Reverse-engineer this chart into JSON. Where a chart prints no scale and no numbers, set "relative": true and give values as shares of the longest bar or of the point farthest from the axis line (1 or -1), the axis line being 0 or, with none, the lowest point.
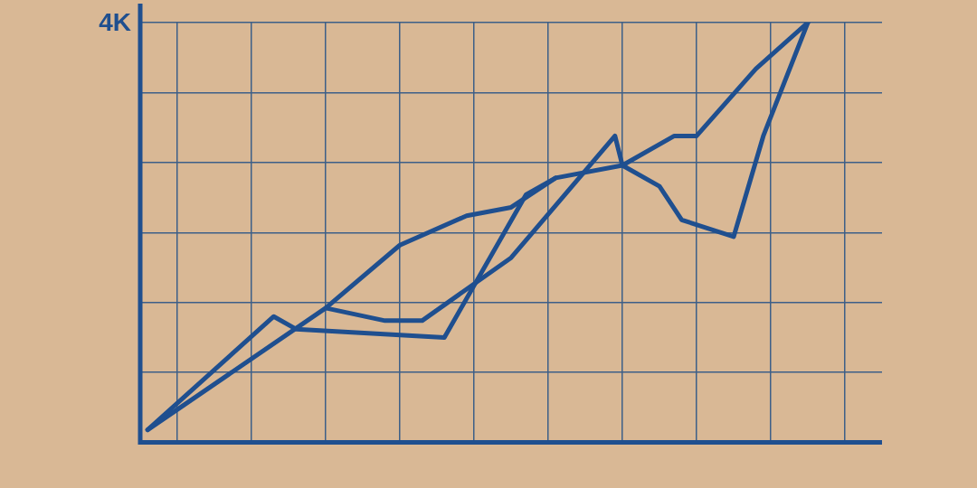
{
  "chart_data": {
    "type": "line",
    "title": "4K",
    "relative": true,
    "grid": true,
    "legend": false,
    "marker": "none",
    "line_style": "solid",
    "categories": [
      null,
      null,
      null,
      null,
      null,
      null,
      null,
      null,
      null,
      null,
      null,
      null,
      null,
      null,
      null,
      null,
      null,
      null,
      null,
      null,
      null,
      null,
      null,
      null,
      null,
      null,
      null,
      null,
      null,
      null,
      null,
      null,
      null,
      null,
      null,
      null,
      null,
      null,
      null,
      null,
      null,
      null,
      null,
      null,
      null,
      null,
      null,
      null,
      null,
      null,
      null,
      null,
      null,
      null,
      null,
      null,
      null,
      null,
      null,
      null,
      null,
      null,
      null,
      null,
      null,
      null,
      null,
      null,
      null,
      null,
      null,
      null,
      null,
      null,
      null,
      null,
      null,
      null,
      null,
      null,
      null,
      null,
      null,
      null,
      null,
      null,
      null,
      null,
      null,
      null,
      null,
      null,
      null,
      null,
      null,
      null,
      null,
      null,
      null,
      null,
      null
    ],
    "series": [
      {
        "color": "#1f4f8f",
        "values": [
          null,
          0.03,
          null,
          null,
          null,
          null,
          null,
          null,
          null,
          null,
          null,
          null,
          null,
          null,
          null,
          null,
          null,
          null,
          0.3,
          null,
          null,
          0.27,
          null,
          null,
          null,
          null,
          null,
          null,
          null,
          null,
          null,
          null,
          null,
          null,
          null,
          null,
          null,
          null,
          null,
          null,
          null,
          0.25,
          null,
          null,
          null,
          null,
          null,
          null,
          null,
          null,
          null,
          null,
          0.59,
          null,
          null,
          null,
          0.63,
          null,
          null,
          null,
          null,
          null,
          null,
          null,
          null,
          0.66,
          null,
          null,
          null,
          null,
          null,
          null,
          0.73,
          null,
          null,
          0.73,
          null,
          null,
          null,
          null,
          null,
          null,
          null,
          0.89,
          null,
          null,
          null,
          null,
          null,
          null,
          1,
          null,
          null,
          null,
          null,
          null,
          null,
          null,
          null,
          null,
          null
        ]
      },
      {
        "color": "#1f4f8f",
        "values": [
          null,
          0.03,
          null,
          null,
          null,
          null,
          null,
          null,
          null,
          null,
          null,
          null,
          null,
          null,
          null,
          null,
          null,
          null,
          null,
          null,
          null,
          null,
          null,
          null,
          null,
          0.32,
          null,
          null,
          null,
          null,
          null,
          null,
          null,
          null,
          null,
          0.47,
          null,
          null,
          null,
          null,
          null,
          null,
          null,
          null,
          0.54,
          null,
          null,
          null,
          null,
          null,
          0.56,
          null,
          null,
          null,
          null,
          null,
          0.63,
          null,
          null,
          null,
          null,
          null,
          null,
          null,
          null,
          null,
          null,
          null,
          null,
          null,
          null,
          null,
          null,
          null,
          null,
          null,
          null,
          null,
          null,
          null,
          null,
          null,
          null,
          null,
          null,
          null,
          null,
          null,
          null,
          null,
          null,
          null,
          null,
          null,
          null,
          null,
          null,
          null,
          null,
          null,
          null
        ]
      },
      {
        "color": "#1f4f8f",
        "values": [
          null,
          null,
          null,
          null,
          null,
          null,
          null,
          null,
          null,
          null,
          null,
          null,
          null,
          null,
          null,
          null,
          null,
          null,
          null,
          null,
          null,
          null,
          null,
          null,
          null,
          0.32,
          null,
          null,
          null,
          null,
          null,
          null,
          null,
          0.29,
          null,
          null,
          null,
          null,
          0.29,
          null,
          null,
          null,
          0.34,
          null,
          null,
          null,
          null,
          null,
          null,
          null,
          0.44,
          null,
          null,
          null,
          null,
          null,
          null,
          null,
          null,
          null,
          null,
          null,
          null,
          null,
          0.73,
          0.66,
          null,
          null,
          null,
          null,
          0.61,
          null,
          null,
          0.53,
          null,
          null,
          null,
          null,
          null,
          null,
          0.49,
          null,
          null,
          null,
          0.73,
          null,
          null,
          null,
          null,
          null,
          1,
          null,
          null,
          null,
          null,
          null,
          null,
          null,
          null,
          null,
          null
        ]
      }
    ]
  }
}
